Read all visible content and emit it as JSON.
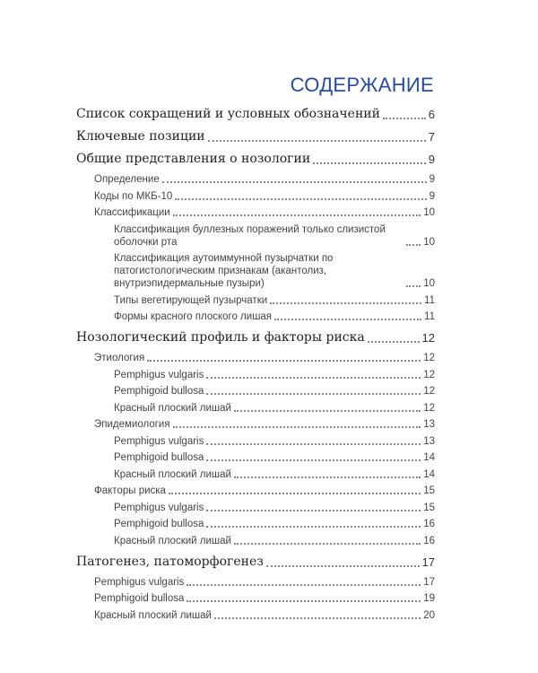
{
  "title": "СОДЕРЖАНИЕ",
  "entries": [
    {
      "level": 1,
      "label": "Список сокращений и условных обозначений",
      "page": "6"
    },
    {
      "level": 1,
      "label": "Ключевые позиции",
      "page": "7"
    },
    {
      "level": 1,
      "label": "Общие представления о нозологии",
      "page": "9"
    },
    {
      "level": 2,
      "label": "Определение",
      "page": "9"
    },
    {
      "level": 2,
      "label": "Коды по МКБ-10",
      "page": "9"
    },
    {
      "level": 2,
      "label": "Классификации",
      "page": "10"
    },
    {
      "level": 3,
      "label": "Классификация буллезных поражений только слизистой оболочки рта",
      "page": "10"
    },
    {
      "level": 3,
      "label": "Классификация аутоиммунной пузырчатки по патогистологическим признакам (акантолиз, внутриэпидермальные пузыри)",
      "page": "10"
    },
    {
      "level": 3,
      "label": "Типы вегетирующей пузырчатки",
      "page": "11"
    },
    {
      "level": 3,
      "label": "Формы красного плоского лишая",
      "page": "11"
    },
    {
      "level": 1,
      "label": "Нозологический профиль и факторы риска",
      "page": "12"
    },
    {
      "level": 2,
      "label": "Этиология",
      "page": "12"
    },
    {
      "level": 3,
      "label": "Pemphigus vulgaris",
      "page": "12"
    },
    {
      "level": 3,
      "label": "Pemphigoid bullosa",
      "page": "12"
    },
    {
      "level": 3,
      "label": "Красный плоский лишай",
      "page": "12"
    },
    {
      "level": 2,
      "label": "Эпидемиология",
      "page": "13"
    },
    {
      "level": 3,
      "label": "Pemphigus vulgaris",
      "page": "13"
    },
    {
      "level": 3,
      "label": "Pemphigoid bullosa",
      "page": "14"
    },
    {
      "level": 3,
      "label": "Красный плоский лишай",
      "page": "14"
    },
    {
      "level": 2,
      "label": "Факторы риска",
      "page": "15"
    },
    {
      "level": 3,
      "label": "Pemphigus vulgaris",
      "page": "15"
    },
    {
      "level": 3,
      "label": "Pemphigoid bullosa",
      "page": "16"
    },
    {
      "level": 3,
      "label": "Красный плоский лишай",
      "page": "16"
    },
    {
      "level": 1,
      "label": "Патогенез, патоморфогенез",
      "page": "17"
    },
    {
      "level": 2,
      "label": "Pemphigus vulgaris",
      "page": "17"
    },
    {
      "level": 2,
      "label": "Pemphigoid bullosa",
      "page": "19"
    },
    {
      "level": 2,
      "label": "Красный плоский лишай",
      "page": "20"
    }
  ]
}
